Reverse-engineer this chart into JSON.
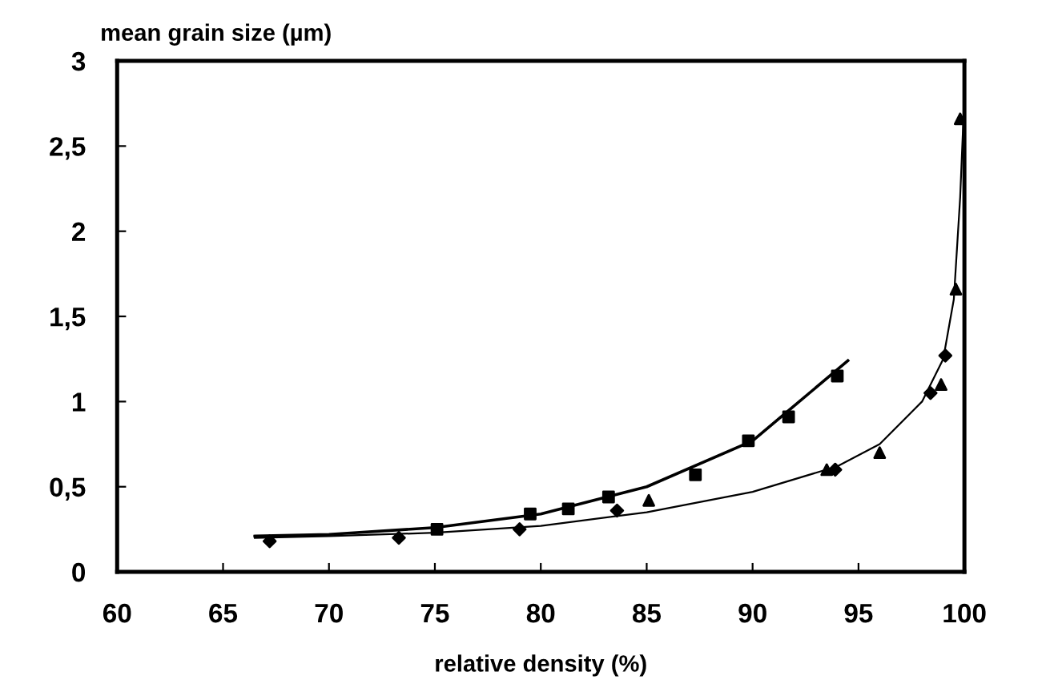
{
  "chart_data": {
    "type": "scatter",
    "xlabel": "relative density (%)",
    "ylabel": "mean grain size (µm)",
    "xlim": [
      60,
      100
    ],
    "xticks": [
      60,
      65,
      70,
      75,
      80,
      85,
      90,
      95,
      100
    ],
    "ylim": [
      0,
      3
    ],
    "yticks": [
      0,
      {
        "value": 0.5,
        "label": "0,5"
      },
      1,
      {
        "value": 1.5,
        "label": "1,5"
      },
      2,
      {
        "value": 2.5,
        "label": "2,5"
      },
      3
    ],
    "grid": false,
    "series": [
      {
        "marker": "square",
        "color": "#000000",
        "x": [
          75.1,
          79.5,
          81.3,
          83.2,
          87.3,
          89.8,
          91.7,
          94.0
        ],
        "values": [
          0.25,
          0.34,
          0.37,
          0.44,
          0.57,
          0.77,
          0.91,
          1.15
        ]
      },
      {
        "marker": "diamond",
        "color": "#000000",
        "x": [
          67.2,
          73.3,
          79.0,
          83.6,
          93.9,
          98.4,
          99.1
        ],
        "values": [
          0.18,
          0.2,
          0.25,
          0.36,
          0.6,
          1.05,
          1.27
        ]
      },
      {
        "marker": "triangle",
        "color": "#000000",
        "x": [
          85.1,
          93.5,
          96.0,
          98.9,
          99.6,
          99.8
        ],
        "values": [
          0.42,
          0.6,
          0.7,
          1.1,
          1.66,
          2.66
        ]
      },
      {
        "type": "line",
        "marker": "none",
        "line_style": "solid",
        "color": "#000000",
        "x": [
          66.5,
          70,
          75,
          80,
          85,
          90,
          94.5
        ],
        "values": [
          0.21,
          0.22,
          0.26,
          0.34,
          0.5,
          0.77,
          1.24
        ]
      },
      {
        "type": "line",
        "marker": "none",
        "line_style": "solid",
        "color": "#000000",
        "x": [
          66.5,
          70,
          75,
          80,
          85,
          90,
          94,
          96,
          98,
          99,
          99.5,
          99.8,
          100
        ],
        "values": [
          0.2,
          0.21,
          0.23,
          0.27,
          0.35,
          0.47,
          0.62,
          0.75,
          1.0,
          1.25,
          1.6,
          2.2,
          2.8
        ]
      }
    ]
  }
}
